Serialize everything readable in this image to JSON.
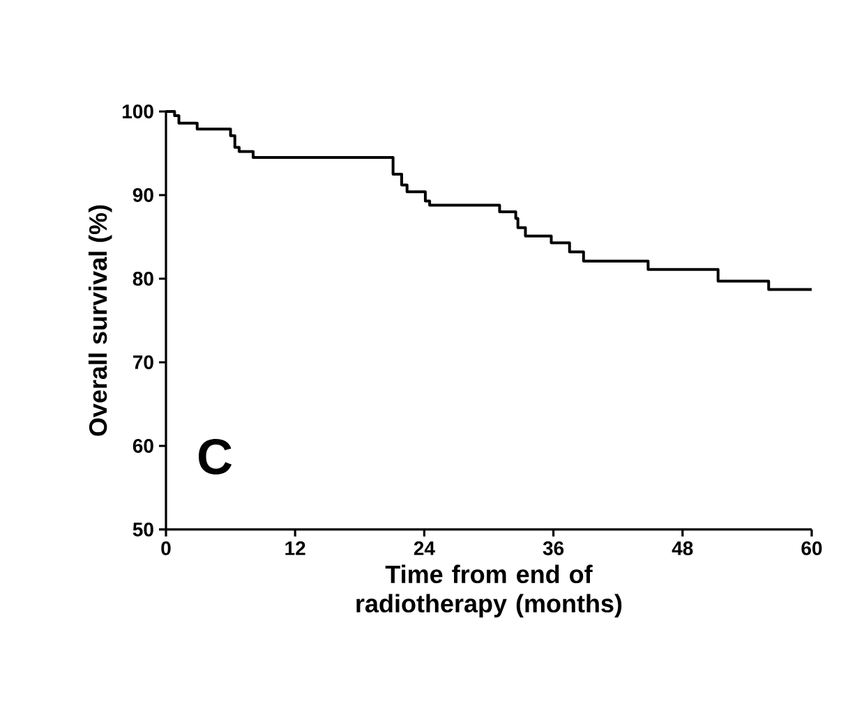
{
  "chart_data": {
    "type": "step",
    "xlabel": "Time from end of radiotherapy (months)",
    "ylabel": "Overall survival (%)",
    "annotations": [
      "C"
    ],
    "xlim": [
      0,
      60
    ],
    "ylim": [
      50,
      100
    ],
    "xticks": [
      0,
      12,
      24,
      36,
      48,
      60
    ],
    "yticks": [
      50,
      60,
      70,
      80,
      90,
      100
    ],
    "series": [
      {
        "color": "#000000",
        "x": [
          0,
          0.8,
          1.2,
          2.9,
          6.0,
          6.4,
          6.8,
          8.1,
          21.1,
          21.9,
          22.4,
          24.1,
          24.5,
          31.0,
          32.5,
          32.7,
          33.4,
          35.8,
          37.5,
          38.8,
          44.8,
          51.3,
          56.0,
          60
        ],
        "values": [
          100,
          99.5,
          98.6,
          97.9,
          97.1,
          95.7,
          95.2,
          94.5,
          92.5,
          91.2,
          90.4,
          89.3,
          88.8,
          88.0,
          87.2,
          86.1,
          85.1,
          84.3,
          83.2,
          82.1,
          81.1,
          79.7,
          78.7,
          78.7
        ]
      }
    ]
  }
}
